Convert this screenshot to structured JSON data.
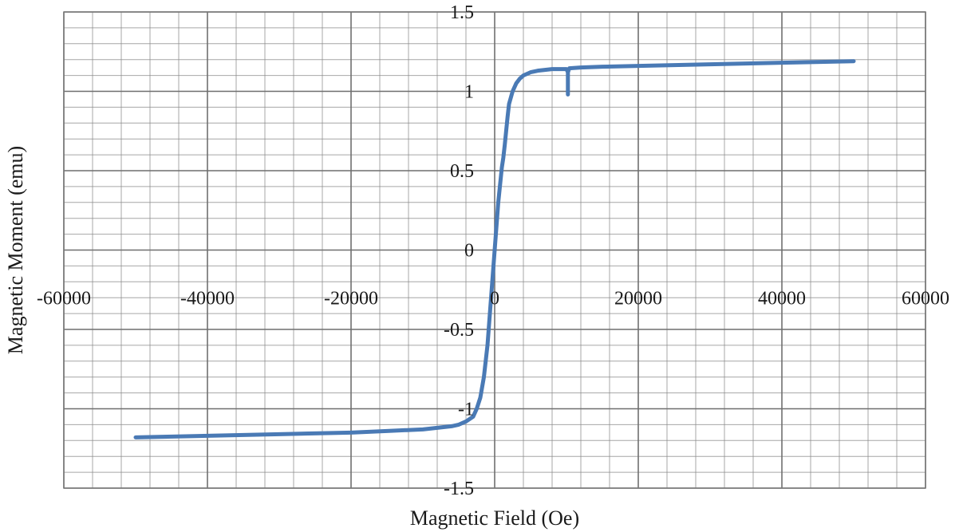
{
  "chart_data": {
    "type": "line",
    "title": "",
    "xlabel": "Magnetic Field (Oe)",
    "ylabel": "Magnetic Moment (emu)",
    "xlim": [
      -60000,
      60000
    ],
    "ylim": [
      -1.5,
      1.5
    ],
    "x_ticks": [
      -60000,
      -40000,
      -20000,
      0,
      20000,
      40000,
      60000
    ],
    "x_tick_labels": [
      "-60000",
      "-40000",
      "-20000",
      "0",
      "20000",
      "40000",
      "60000"
    ],
    "y_ticks": [
      -1.5,
      -1,
      -0.5,
      0,
      0.5,
      1,
      1.5
    ],
    "y_tick_labels": [
      "-1.5",
      "-1",
      "-0.5",
      "0",
      "0.5",
      "1",
      "1.5"
    ],
    "grid": true,
    "line_color": "#4a7ab5",
    "grid_color": "#8a8a8a",
    "series": [
      {
        "x": [
          -50000,
          -40000,
          -30000,
          -20000,
          -15000,
          -10000,
          -8000,
          -6000,
          -5000,
          -4000,
          -3000,
          -2500,
          -2000,
          -1500,
          -1000,
          -500,
          0,
          500,
          1000,
          1200,
          1400,
          1600,
          1800,
          2000,
          2500,
          3000,
          3500,
          4000,
          5000,
          6000,
          8000,
          10000,
          10200,
          10200,
          10200,
          10400,
          12000,
          15000,
          20000,
          30000,
          40000,
          50000
        ],
        "y": [
          -1.18,
          -1.17,
          -1.16,
          -1.15,
          -1.14,
          -1.13,
          -1.12,
          -1.11,
          -1.1,
          -1.08,
          -1.05,
          -1.0,
          -0.93,
          -0.8,
          -0.6,
          -0.3,
          0.0,
          0.3,
          0.52,
          0.58,
          0.66,
          0.75,
          0.84,
          0.92,
          1.0,
          1.05,
          1.08,
          1.1,
          1.12,
          1.13,
          1.14,
          1.14,
          1.12,
          0.98,
          1.12,
          1.145,
          1.15,
          1.155,
          1.16,
          1.17,
          1.18,
          1.19
        ]
      }
    ]
  }
}
